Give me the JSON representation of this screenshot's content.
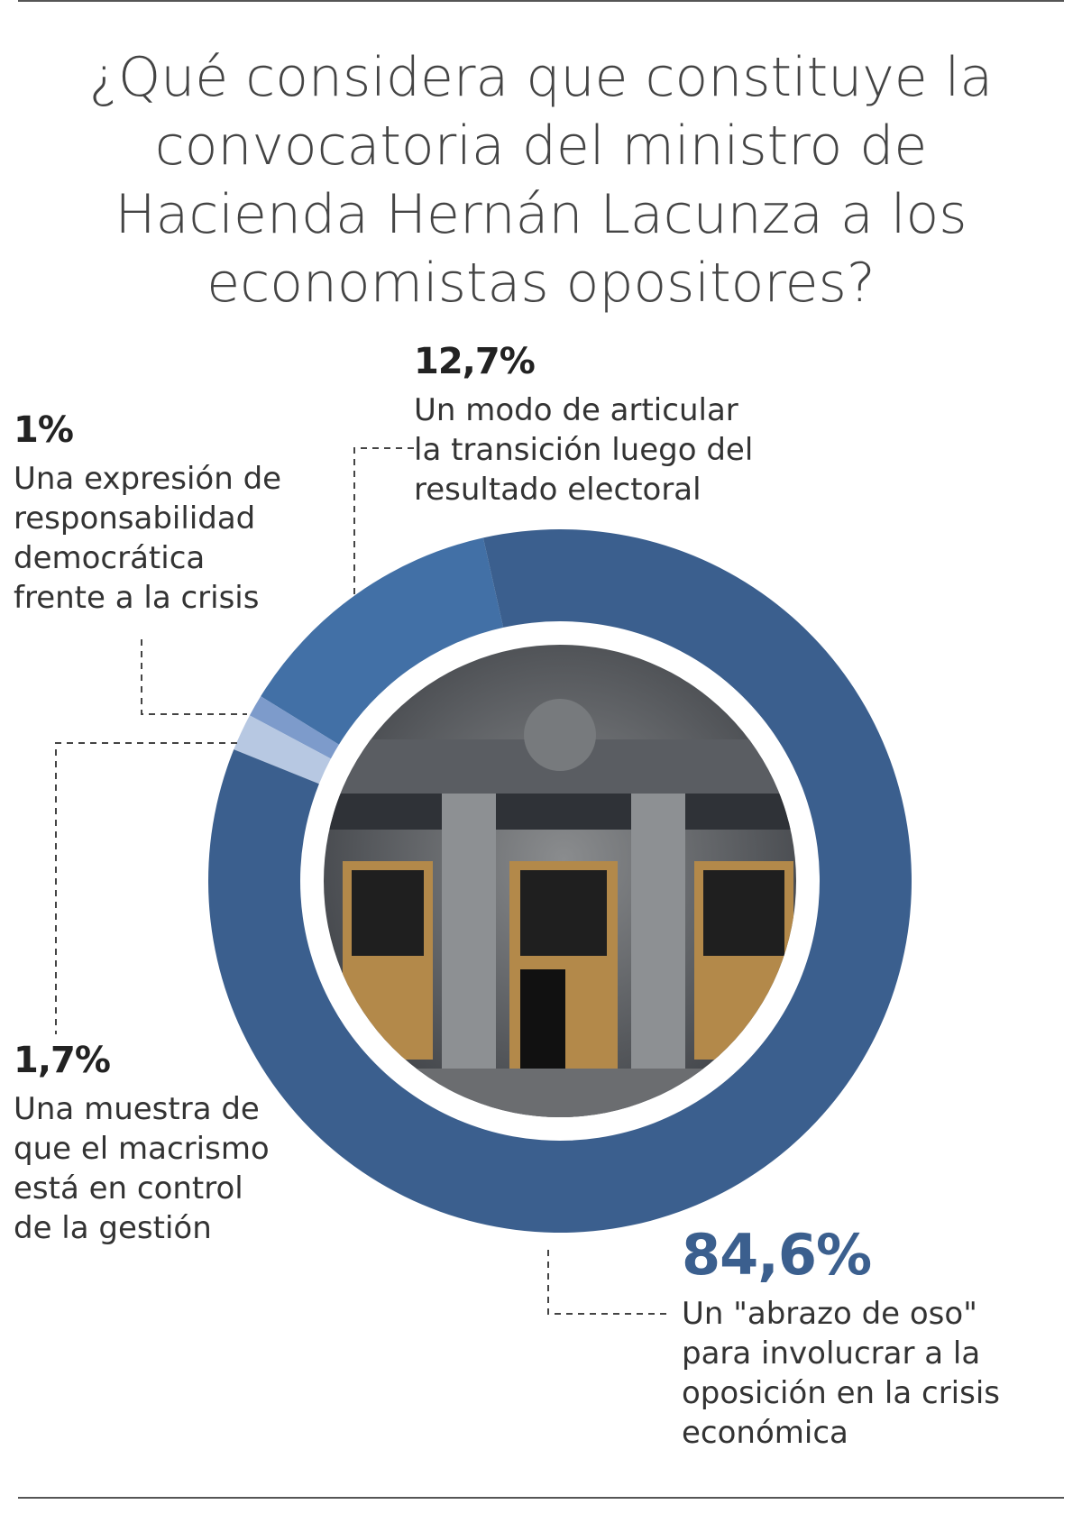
{
  "chart_data": {
    "type": "donut",
    "title": "¿Qué considera que constituye la convocatoria del ministro de Hacienda Hernán Lacunza a los economistas opositores?",
    "categories": [
      "Un \"abrazo de oso\" para involucrar a la oposición en la crisis económica",
      "Una muestra de que el macrismo está en control de la gestión",
      "Una expresión de responsabilidad democrática frente a la crisis",
      "Un modo de articular la transición luego del resultado electoral"
    ],
    "values": [
      84.6,
      1.7,
      1,
      12.7
    ],
    "value_labels": [
      "84,6%",
      "1,7%",
      "1%",
      "12,7%"
    ],
    "colors": [
      "#3b5f8e",
      "#b7c8e2",
      "#7d9bcb",
      "#4270a6"
    ]
  }
}
